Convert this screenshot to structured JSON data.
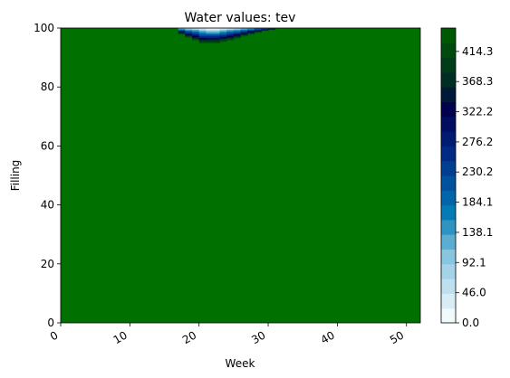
{
  "chart_data": {
    "type": "heatmap",
    "title": "Water values: tev",
    "xlabel": "Week",
    "ylabel": "Filling",
    "xlim": [
      0,
      52
    ],
    "ylim": [
      0,
      100
    ],
    "x_ticks": [
      0,
      10,
      20,
      30,
      40,
      50
    ],
    "y_ticks": [
      0,
      20,
      40,
      60,
      80,
      100
    ],
    "colorbar": {
      "min": 0.0,
      "max": 450,
      "tick_values": [
        0.0,
        46.0,
        92.1,
        138.1,
        184.1,
        230.2,
        276.2,
        322.2,
        368.3,
        414.3
      ],
      "tick_labels": [
        "0.0",
        "46.0",
        "92.1",
        "138.1",
        "184.1",
        "230.2",
        "276.2",
        "322.2",
        "368.3",
        "414.3"
      ],
      "levels": 20,
      "above_max_color": "#007000"
    },
    "background_value": 450,
    "low_region": {
      "weeks": [
        14,
        15,
        16,
        17,
        18,
        19,
        20,
        21,
        22,
        23,
        24,
        25,
        26,
        27,
        28,
        29,
        30,
        31,
        32,
        33,
        34,
        35
      ],
      "top_filling": 100,
      "boundary_filling": [
        100,
        100,
        100,
        100,
        98,
        97,
        96,
        95,
        95,
        95.5,
        96,
        96.7,
        97.3,
        98,
        98.6,
        99.2,
        99.6,
        100,
        100,
        100,
        100,
        100
      ],
      "min_value_week": 22,
      "min_value": 0
    }
  }
}
